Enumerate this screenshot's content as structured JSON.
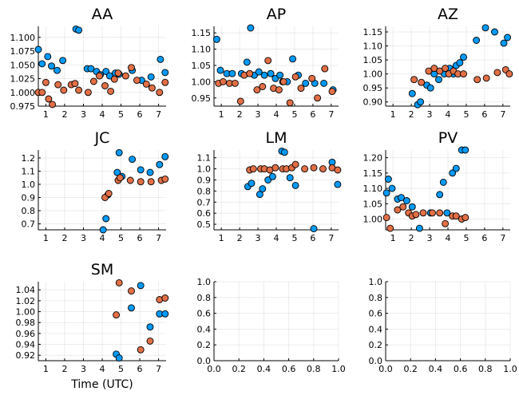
{
  "colors": {
    "series_a": "#009AFA",
    "series_b": "#E26F46"
  },
  "chart_data": [
    {
      "type": "scatter",
      "title": "AA",
      "xlabel": "",
      "xlim": [
        0.6,
        7.4
      ],
      "ylim": [
        0.975,
        1.12
      ],
      "xticks": [
        "1",
        "2",
        "3",
        "4",
        "5",
        "6",
        "7"
      ],
      "yticks": [
        "0.975",
        "1.000",
        "1.025",
        "1.050",
        "1.075",
        "1.100"
      ],
      "grid": true,
      "legend": "none",
      "series": [
        {
          "x": [
            0.6,
            0.8,
            1.1,
            1.3,
            1.6,
            1.9,
            2.6,
            2.75,
            3.2,
            3.4,
            3.7,
            3.9,
            4.2,
            4.4,
            4.7,
            4.9,
            5.6,
            6.1,
            6.6,
            7.1,
            7.35
          ],
          "y": [
            1.078,
            1.052,
            1.065,
            1.048,
            1.04,
            1.058,
            1.115,
            1.113,
            1.043,
            1.043,
            1.038,
            1.032,
            1.038,
            1.03,
            1.035,
            1.033,
            1.04,
            1.022,
            1.028,
            1.06,
            1.036
          ]
        },
        {
          "x": [
            0.6,
            0.8,
            1.0,
            1.15,
            1.35,
            1.65,
            1.95,
            2.35,
            2.55,
            2.75,
            3.25,
            3.55,
            3.85,
            4.15,
            4.45,
            4.65,
            4.85,
            5.25,
            5.55,
            5.85,
            6.35,
            6.65,
            7.05,
            7.35
          ],
          "y": [
            1.0,
            1.0,
            1.018,
            0.988,
            0.978,
            1.014,
            1.004,
            1.014,
            1.016,
            1.004,
            1.0,
            1.02,
            1.03,
            1.012,
            1.002,
            1.024,
            1.035,
            1.03,
            1.045,
            1.022,
            1.015,
            1.008,
            1.0,
            1.018
          ]
        }
      ]
    },
    {
      "type": "scatter",
      "title": "AP",
      "xlabel": "",
      "xlim": [
        0.6,
        7.4
      ],
      "ylim": [
        0.925,
        1.17
      ],
      "xticks": [
        "1",
        "2",
        "3",
        "4",
        "5",
        "6",
        "7"
      ],
      "yticks": [
        "0.95",
        "1.00",
        "1.05",
        "1.10",
        "1.15"
      ],
      "grid": true,
      "legend": "none",
      "series": [
        {
          "x": [
            0.75,
            0.95,
            1.3,
            1.6,
            2.1,
            2.4,
            2.6,
            2.8,
            3.05,
            3.35,
            3.7,
            3.95,
            4.2,
            4.35,
            4.6,
            4.9,
            5.2,
            5.6,
            6.1,
            6.6,
            7.1
          ],
          "y": [
            1.13,
            1.035,
            1.025,
            1.025,
            1.025,
            1.06,
            1.165,
            1.02,
            1.03,
            1.02,
            1.025,
            1.01,
            1.02,
            1.0,
            1.0,
            1.07,
            1.02,
            0.995,
            0.995,
            0.995,
            0.975
          ]
        },
        {
          "x": [
            0.85,
            1.1,
            1.45,
            1.75,
            2.05,
            2.25,
            2.55,
            2.95,
            3.25,
            3.55,
            3.85,
            4.15,
            4.4,
            4.75,
            5.05,
            5.35,
            5.95,
            6.25,
            6.65,
            7.05
          ],
          "y": [
            0.995,
            1.0,
            0.995,
            0.995,
            0.94,
            1.02,
            1.025,
            0.975,
            0.985,
            1.065,
            0.98,
            0.975,
            1.0,
            0.935,
            1.015,
            0.98,
            1.01,
            0.95,
            1.04,
            0.97
          ]
        }
      ]
    },
    {
      "type": "scatter",
      "title": "AZ",
      "xlabel": "",
      "xlim": [
        0.6,
        7.4
      ],
      "ylim": [
        0.885,
        1.17
      ],
      "xticks": [
        "1",
        "2",
        "3",
        "4",
        "5",
        "6",
        "7"
      ],
      "yticks": [
        "0.90",
        "0.95",
        "1.00",
        "1.05",
        "1.10",
        "1.15"
      ],
      "grid": true,
      "legend": "none",
      "series": [
        {
          "x": [
            2.05,
            2.35,
            2.5,
            2.85,
            3.05,
            3.25,
            3.5,
            3.8,
            4.1,
            4.3,
            4.45,
            4.65,
            4.85,
            5.55,
            6.05,
            6.55,
            7.05,
            7.25
          ],
          "y": [
            0.93,
            0.89,
            0.9,
            0.96,
            0.95,
            1.0,
            0.98,
            1.0,
            1.02,
            1.0,
            1.03,
            1.04,
            1.06,
            1.12,
            1.165,
            1.15,
            1.11,
            1.13
          ]
        },
        {
          "x": [
            2.15,
            2.55,
            2.95,
            3.25,
            3.55,
            3.85,
            4.05,
            4.3,
            4.55,
            4.85,
            5.6,
            6.1,
            6.7,
            7.15,
            7.35
          ],
          "y": [
            0.98,
            0.97,
            1.01,
            1.02,
            1.01,
            1.02,
            1.0,
            1.01,
            1.0,
            1.0,
            0.98,
            0.985,
            1.005,
            1.015,
            1.0
          ]
        }
      ]
    },
    {
      "type": "scatter",
      "title": "JC",
      "xlabel": "",
      "xlim": [
        0.6,
        7.4
      ],
      "ylim": [
        0.655,
        1.26
      ],
      "xticks": [
        "1",
        "2",
        "3",
        "4",
        "5",
        "6",
        "7"
      ],
      "yticks": [
        "0.7",
        "0.8",
        "0.9",
        "1.0",
        "1.1",
        "1.2"
      ],
      "grid": true,
      "legend": "none",
      "series": [
        {
          "x": [
            4.05,
            4.2,
            4.3,
            4.8,
            4.9,
            5.05,
            5.6,
            6.05,
            6.55,
            7.05,
            7.35
          ],
          "y": [
            0.655,
            0.74,
            0.92,
            1.09,
            1.24,
            1.06,
            1.19,
            1.11,
            1.09,
            1.15,
            1.21
          ]
        },
        {
          "x": [
            4.15,
            4.35,
            4.85,
            4.95,
            5.5,
            6.05,
            6.6,
            7.15,
            7.35
          ],
          "y": [
            0.9,
            0.93,
            1.03,
            1.05,
            1.03,
            1.02,
            1.02,
            1.03,
            1.04
          ]
        }
      ]
    },
    {
      "type": "scatter",
      "title": "LM",
      "xlabel": "",
      "xlim": [
        0.6,
        7.4
      ],
      "ylim": [
        0.45,
        1.17
      ],
      "xticks": [
        "1",
        "2",
        "3",
        "4",
        "5",
        "6",
        "7"
      ],
      "yticks": [
        "0.5",
        "0.6",
        "0.7",
        "0.8",
        "0.9",
        "1.0",
        "1.1"
      ],
      "grid": true,
      "legend": "none",
      "series": [
        {
          "x": [
            2.45,
            2.65,
            3.1,
            3.25,
            3.55,
            3.8,
            4.3,
            4.45,
            4.75,
            5.05,
            6.05,
            7.05,
            7.35
          ],
          "y": [
            0.84,
            0.87,
            0.77,
            0.82,
            0.9,
            0.93,
            1.16,
            1.15,
            0.92,
            0.85,
            0.46,
            1.06,
            0.86
          ]
        },
        {
          "x": [
            2.55,
            2.75,
            3.15,
            3.35,
            3.65,
            3.95,
            4.35,
            4.55,
            4.85,
            5.05,
            5.55,
            6.05,
            6.55,
            7.05,
            7.35
          ],
          "y": [
            0.99,
            1.0,
            1.0,
            1.0,
            0.99,
            1.01,
            1.0,
            1.0,
            1.01,
            1.04,
            1.0,
            1.01,
            1.0,
            1.01,
            0.99
          ]
        }
      ]
    },
    {
      "type": "scatter",
      "title": "PV",
      "xlabel": "",
      "xlim": [
        0.6,
        7.4
      ],
      "ylim": [
        0.965,
        1.225
      ],
      "xticks": [
        "1",
        "2",
        "3",
        "4",
        "5",
        "6",
        "7"
      ],
      "yticks": [
        "1.00",
        "1.05",
        "1.10",
        "1.15",
        "1.20"
      ],
      "grid": true,
      "legend": "none",
      "series": [
        {
          "x": [
            0.65,
            0.75,
            0.95,
            1.25,
            1.45,
            1.75,
            2.05,
            2.45,
            3.05,
            3.55,
            3.75,
            3.95,
            4.25,
            4.45,
            4.75,
            4.95
          ],
          "y": [
            1.085,
            1.13,
            1.1,
            1.065,
            1.07,
            1.06,
            1.04,
            0.97,
            1.02,
            1.08,
            1.12,
            1.02,
            1.15,
            1.165,
            1.225,
            1.225
          ]
        },
        {
          "x": [
            0.65,
            0.85,
            1.25,
            1.55,
            1.85,
            2.05,
            2.25,
            2.65,
            3.15,
            3.55,
            3.85,
            4.25,
            4.45,
            4.75,
            4.95
          ],
          "y": [
            1.005,
            0.97,
            1.03,
            1.04,
            1.02,
            1.01,
            1.015,
            1.02,
            1.02,
            1.02,
            0.985,
            1.01,
            1.01,
            1.0,
            1.005
          ]
        }
      ]
    },
    {
      "type": "scatter",
      "title": "SM",
      "xlabel": "Time (UTC)",
      "xlim": [
        0.6,
        7.4
      ],
      "ylim": [
        0.91,
        1.055
      ],
      "xticks": [
        "1",
        "2",
        "3",
        "4",
        "5",
        "6",
        "7"
      ],
      "yticks": [
        "0.92",
        "0.94",
        "0.96",
        "0.98",
        "1.00",
        "1.02",
        "1.04"
      ],
      "grid": true,
      "legend": "none",
      "series": [
        {
          "x": [
            4.75,
            4.9,
            5.55,
            6.05,
            6.55,
            7.05,
            7.35
          ],
          "y": [
            0.922,
            0.915,
            1.007,
            1.048,
            0.972,
            0.996,
            0.996
          ]
        },
        {
          "x": [
            4.75,
            4.9,
            5.55,
            6.05,
            6.55,
            7.05,
            7.35
          ],
          "y": [
            0.994,
            1.053,
            1.038,
            0.93,
            0.946,
            1.022,
            1.025
          ]
        }
      ]
    },
    {
      "type": "scatter",
      "title": "",
      "xlabel": "",
      "xlim": [
        0,
        1
      ],
      "ylim": [
        0,
        1
      ],
      "xticks": [
        "0.0",
        "0.2",
        "0.4",
        "0.6",
        "0.8",
        "1.0"
      ],
      "yticks": [
        "0.0",
        "0.2",
        "0.4",
        "0.6",
        "0.8",
        "1.0"
      ],
      "grid": true,
      "legend": "none",
      "series": []
    },
    {
      "type": "scatter",
      "title": "",
      "xlabel": "",
      "xlim": [
        0,
        1
      ],
      "ylim": [
        0,
        1
      ],
      "xticks": [
        "0.0",
        "0.2",
        "0.4",
        "0.6",
        "0.8",
        "1.0"
      ],
      "yticks": [
        "0.0",
        "0.2",
        "0.4",
        "0.6",
        "0.8",
        "1.0"
      ],
      "grid": true,
      "legend": "none",
      "series": []
    }
  ]
}
